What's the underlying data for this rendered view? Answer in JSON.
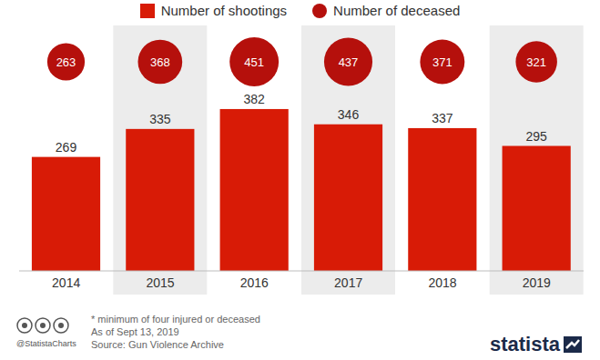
{
  "chart_data": {
    "type": "bar",
    "categories": [
      "2014",
      "2015",
      "2016",
      "2017",
      "2018",
      "2019"
    ],
    "series": [
      {
        "name": "Number of shootings",
        "color": "#d81b06",
        "values": [
          269,
          335,
          382,
          346,
          337,
          295
        ]
      },
      {
        "name": "Number of deceased",
        "type": "bubble",
        "marker": "circle",
        "color": "#b5100c",
        "values": [
          263,
          368,
          451,
          437,
          371,
          321
        ]
      }
    ],
    "ylim": [
      0,
      575
    ],
    "tick_labels": "x",
    "data_labels": true,
    "legend": "top",
    "annotations": [
      "* minimum of four injured or deceased",
      "As of Sept 13, 2019"
    ],
    "source": "Source: Gun Violence Archive",
    "credit": "@StatistaCharts",
    "logo": "statista"
  }
}
